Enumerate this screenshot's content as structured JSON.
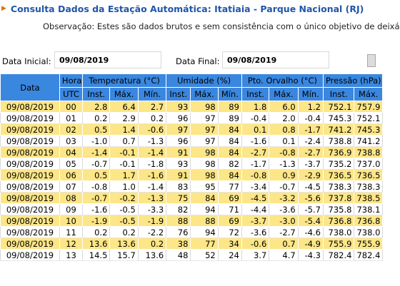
{
  "page": {
    "title": "Consulta Dados da Estação Automática: Itatiaia - Parque Nacional (RJ)",
    "observacao": "Observação: Estes são dados brutos e sem consistência com o único objetivo de deixá"
  },
  "filters": {
    "data_inicial_label": "Data Inicial:",
    "data_inicial_value": "09/08/2019",
    "data_final_label": "Data Final:",
    "data_final_value": "09/08/2019"
  },
  "table": {
    "group_headers": [
      "Data",
      "Hora",
      "Temperatura (°C)",
      "Umidade (%)",
      "Pto. Orvalho (°C)",
      "Pressão (hPa)"
    ],
    "sub_headers": [
      "UTC",
      "Inst.",
      "Máx.",
      "Mín.",
      "Inst.",
      "Máx.",
      "Mín.",
      "Inst.",
      "Máx.",
      "Mín.",
      "Inst.",
      "Máx."
    ],
    "rows": [
      [
        "09/08/2019",
        "00",
        "2.8",
        "6.4",
        "2.7",
        "93",
        "98",
        "89",
        "1.8",
        "6.0",
        "1.2",
        "752.1",
        "757.9"
      ],
      [
        "09/08/2019",
        "01",
        "0.2",
        "2.9",
        "0.2",
        "96",
        "97",
        "89",
        "-0.4",
        "2.0",
        "-0.4",
        "745.3",
        "752.1"
      ],
      [
        "09/08/2019",
        "02",
        "0.5",
        "1.4",
        "-0.6",
        "97",
        "97",
        "84",
        "0.1",
        "0.8",
        "-1.7",
        "741.2",
        "745.3"
      ],
      [
        "09/08/2019",
        "03",
        "-1.0",
        "0.7",
        "-1.3",
        "96",
        "97",
        "84",
        "-1.6",
        "0.1",
        "-2.4",
        "738.8",
        "741.2"
      ],
      [
        "09/08/2019",
        "04",
        "-1.4",
        "-0.1",
        "-1.4",
        "91",
        "98",
        "84",
        "-2.7",
        "-0.8",
        "-2.7",
        "736.9",
        "738.8"
      ],
      [
        "09/08/2019",
        "05",
        "-0.7",
        "-0.1",
        "-1.8",
        "93",
        "98",
        "82",
        "-1.7",
        "-1.3",
        "-3.7",
        "735.2",
        "737.0"
      ],
      [
        "09/08/2019",
        "06",
        "0.5",
        "1.7",
        "-1.6",
        "91",
        "98",
        "84",
        "-0.8",
        "0.9",
        "-2.9",
        "736.5",
        "736.5"
      ],
      [
        "09/08/2019",
        "07",
        "-0.8",
        "1.0",
        "-1.4",
        "83",
        "95",
        "77",
        "-3.4",
        "-0.7",
        "-4.5",
        "738.3",
        "738.3"
      ],
      [
        "09/08/2019",
        "08",
        "-0.7",
        "-0.2",
        "-1.3",
        "75",
        "84",
        "69",
        "-4.5",
        "-3.2",
        "-5.6",
        "737.8",
        "738.5"
      ],
      [
        "09/08/2019",
        "09",
        "-1.6",
        "-0.5",
        "-3.3",
        "82",
        "94",
        "71",
        "-4.4",
        "-3.6",
        "-5.7",
        "735.8",
        "738.1"
      ],
      [
        "09/08/2019",
        "10",
        "-1.9",
        "-0.5",
        "-1.9",
        "88",
        "88",
        "69",
        "-3.7",
        "-3.0",
        "-5.4",
        "736.8",
        "736.8"
      ],
      [
        "09/08/2019",
        "11",
        "0.2",
        "0.2",
        "-2.2",
        "76",
        "94",
        "72",
        "-3.6",
        "-2.7",
        "-4.6",
        "738.0",
        "738.0"
      ],
      [
        "09/08/2019",
        "12",
        "13.6",
        "13.6",
        "0.2",
        "38",
        "77",
        "34",
        "-0.6",
        "0.7",
        "-4.9",
        "755.9",
        "755.9"
      ],
      [
        "09/08/2019",
        "13",
        "14.5",
        "15.7",
        "13.6",
        "48",
        "52",
        "24",
        "3.7",
        "4.7",
        "-4.3",
        "782.4",
        "782.4"
      ]
    ]
  },
  "colors": {
    "title": "#2155a8",
    "header_bg": "#3a87e0",
    "row_highlight": "#fce687"
  }
}
